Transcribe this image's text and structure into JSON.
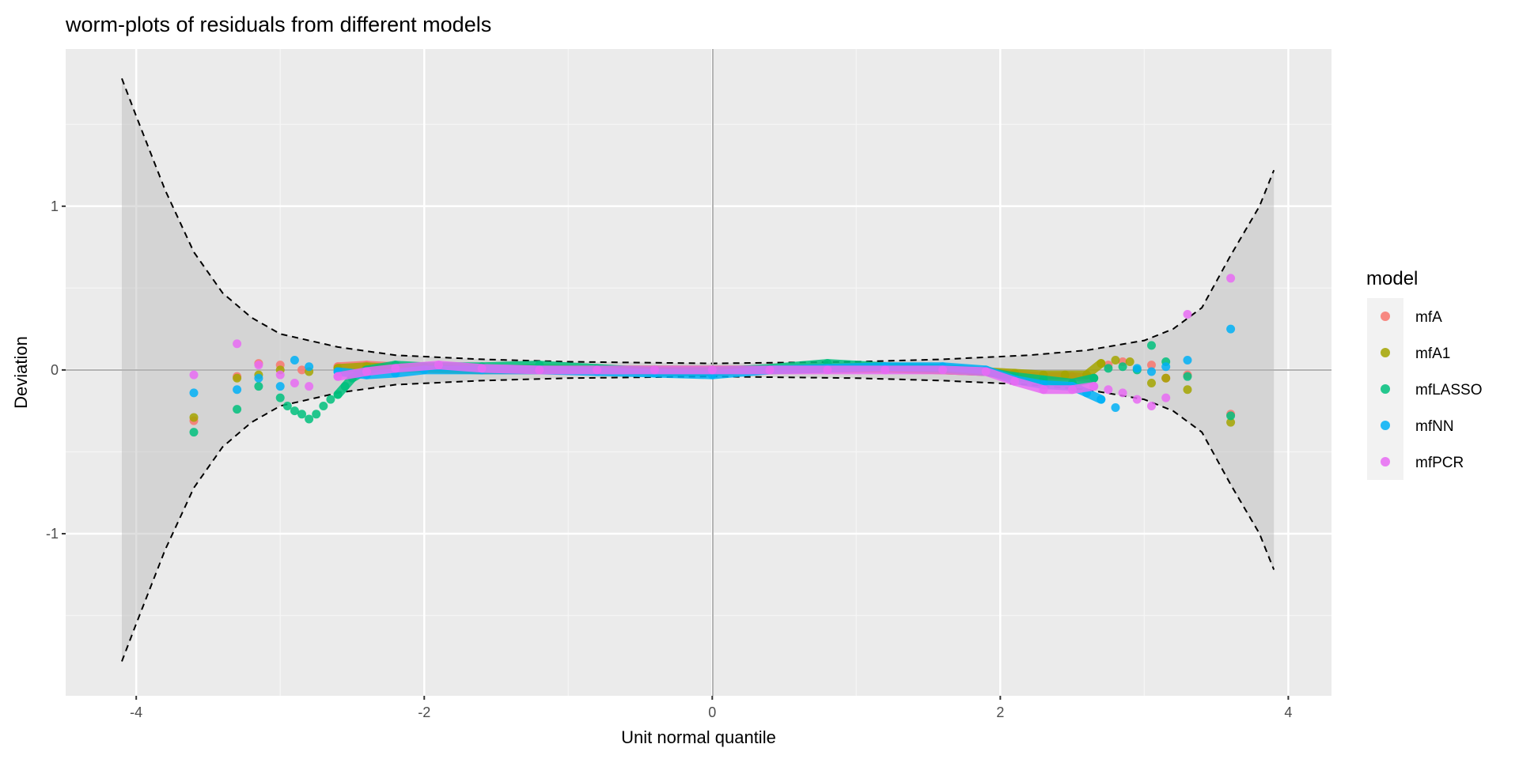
{
  "chart_data": {
    "type": "scatter",
    "title": "worm-plots of residuals from different models",
    "xlabel": "Unit normal quantile",
    "ylabel": "Deviation",
    "xlim": [
      -4.49,
      4.3
    ],
    "ylim": [
      -1.99,
      1.96
    ],
    "x_ticks": [
      -4,
      -2,
      0,
      2,
      4
    ],
    "x_tick_labels": [
      "-4",
      "-2",
      "0",
      "2",
      "4"
    ],
    "y_ticks": [
      -1,
      0,
      1
    ],
    "y_tick_labels": [
      "-1",
      "0",
      "1"
    ],
    "grid": true,
    "legend": {
      "title": "model",
      "placement": "right"
    },
    "confidence_band": {
      "x": [
        -4.1,
        -4.0,
        -3.8,
        -3.6,
        -3.4,
        -3.2,
        -3.0,
        -2.6,
        -2.2,
        -1.6,
        -1.0,
        0.0,
        1.0,
        1.6,
        2.2,
        2.6,
        3.0,
        3.2,
        3.4,
        3.6,
        3.8,
        3.9
      ],
      "upper": [
        1.78,
        1.55,
        1.1,
        0.72,
        0.47,
        0.32,
        0.22,
        0.14,
        0.09,
        0.065,
        0.05,
        0.04,
        0.05,
        0.065,
        0.09,
        0.12,
        0.18,
        0.25,
        0.38,
        0.7,
        1.0,
        1.22
      ],
      "lower": [
        -1.78,
        -1.55,
        -1.1,
        -0.72,
        -0.47,
        -0.32,
        -0.22,
        -0.14,
        -0.09,
        -0.065,
        -0.05,
        -0.04,
        -0.05,
        -0.065,
        -0.09,
        -0.12,
        -0.18,
        -0.25,
        -0.38,
        -0.7,
        -1.0,
        -1.22
      ]
    },
    "series": [
      {
        "name": "mfA",
        "color": "#F8766D",
        "points": [
          [
            -3.6,
            -0.31
          ],
          [
            -3.3,
            -0.04
          ],
          [
            -3.15,
            0.04
          ],
          [
            -3.0,
            0.03
          ],
          [
            -2.85,
            0.0
          ],
          [
            -2.6,
            0.02
          ],
          [
            -2.4,
            0.03
          ],
          [
            -2.2,
            0.02
          ],
          [
            -2.0,
            0.01
          ],
          [
            -1.6,
            0.0
          ],
          [
            -1.2,
            0.0
          ],
          [
            -0.8,
            0.0
          ],
          [
            -0.4,
            0.0
          ],
          [
            0.0,
            0.0
          ],
          [
            0.4,
            0.0
          ],
          [
            0.8,
            0.01
          ],
          [
            1.2,
            0.01
          ],
          [
            1.6,
            0.0
          ],
          [
            1.9,
            -0.01
          ],
          [
            2.1,
            -0.03
          ],
          [
            2.3,
            -0.04
          ],
          [
            2.5,
            -0.04
          ],
          [
            2.65,
            -0.05
          ],
          [
            2.75,
            0.03
          ],
          [
            2.85,
            0.05
          ],
          [
            3.05,
            0.03
          ],
          [
            3.15,
            -0.05
          ],
          [
            3.3,
            -0.03
          ],
          [
            3.6,
            -0.27
          ]
        ]
      },
      {
        "name": "mfA1",
        "color": "#A3A500",
        "points": [
          [
            -3.6,
            -0.29
          ],
          [
            -3.3,
            -0.05
          ],
          [
            -3.15,
            -0.03
          ],
          [
            -3.0,
            0.0
          ],
          [
            -2.8,
            -0.01
          ],
          [
            -2.6,
            0.01
          ],
          [
            -2.4,
            0.02
          ],
          [
            -2.2,
            0.01
          ],
          [
            -2.0,
            0.01
          ],
          [
            -1.6,
            0.0
          ],
          [
            -1.2,
            0.01
          ],
          [
            -0.8,
            0.0
          ],
          [
            -0.4,
            0.0
          ],
          [
            0.0,
            0.0
          ],
          [
            0.4,
            0.0
          ],
          [
            0.8,
            0.01
          ],
          [
            1.2,
            0.01
          ],
          [
            1.6,
            0.0
          ],
          [
            1.9,
            -0.01
          ],
          [
            2.1,
            -0.02
          ],
          [
            2.3,
            -0.03
          ],
          [
            2.45,
            -0.03
          ],
          [
            2.6,
            -0.03
          ],
          [
            2.7,
            0.04
          ],
          [
            2.8,
            0.06
          ],
          [
            2.9,
            0.05
          ],
          [
            3.05,
            -0.08
          ],
          [
            3.15,
            -0.05
          ],
          [
            3.3,
            -0.12
          ],
          [
            3.6,
            -0.32
          ]
        ]
      },
      {
        "name": "mfLASSO",
        "color": "#00BF7D",
        "points": [
          [
            -3.6,
            -0.38
          ],
          [
            -3.3,
            -0.24
          ],
          [
            -3.15,
            -0.1
          ],
          [
            -3.0,
            -0.17
          ],
          [
            -2.95,
            -0.22
          ],
          [
            -2.9,
            -0.25
          ],
          [
            -2.85,
            -0.27
          ],
          [
            -2.8,
            -0.3
          ],
          [
            -2.75,
            -0.27
          ],
          [
            -2.7,
            -0.22
          ],
          [
            -2.65,
            -0.18
          ],
          [
            -2.6,
            -0.15
          ],
          [
            -2.55,
            -0.1
          ],
          [
            -2.5,
            -0.05
          ],
          [
            -2.4,
            0.0
          ],
          [
            -2.2,
            0.03
          ],
          [
            -2.0,
            0.02
          ],
          [
            -1.6,
            0.02
          ],
          [
            -1.2,
            0.03
          ],
          [
            -0.8,
            0.01
          ],
          [
            -0.4,
            -0.01
          ],
          [
            0.0,
            -0.01
          ],
          [
            0.4,
            0.01
          ],
          [
            0.8,
            0.04
          ],
          [
            1.2,
            0.02
          ],
          [
            1.6,
            0.01
          ],
          [
            1.9,
            -0.01
          ],
          [
            2.1,
            -0.04
          ],
          [
            2.3,
            -0.06
          ],
          [
            2.5,
            -0.08
          ],
          [
            2.65,
            -0.05
          ],
          [
            2.75,
            0.01
          ],
          [
            2.85,
            0.02
          ],
          [
            2.95,
            0.0
          ],
          [
            3.05,
            0.15
          ],
          [
            3.15,
            0.05
          ],
          [
            3.3,
            -0.04
          ],
          [
            3.6,
            -0.28
          ]
        ]
      },
      {
        "name": "mfNN",
        "color": "#00B0F6",
        "points": [
          [
            -3.6,
            -0.14
          ],
          [
            -3.3,
            -0.12
          ],
          [
            -3.15,
            -0.05
          ],
          [
            -3.0,
            -0.1
          ],
          [
            -2.9,
            0.06
          ],
          [
            -2.8,
            0.02
          ],
          [
            -2.6,
            -0.01
          ],
          [
            -2.4,
            -0.03
          ],
          [
            -2.2,
            -0.02
          ],
          [
            -2.0,
            0.0
          ],
          [
            -1.6,
            0.0
          ],
          [
            -1.2,
            0.0
          ],
          [
            -0.8,
            -0.01
          ],
          [
            -0.4,
            -0.02
          ],
          [
            0.0,
            -0.03
          ],
          [
            0.4,
            0.0
          ],
          [
            0.8,
            0.01
          ],
          [
            1.2,
            0.02
          ],
          [
            1.6,
            0.02
          ],
          [
            1.9,
            0.0
          ],
          [
            2.1,
            -0.06
          ],
          [
            2.3,
            -0.09
          ],
          [
            2.5,
            -0.1
          ],
          [
            2.6,
            -0.14
          ],
          [
            2.7,
            -0.18
          ],
          [
            2.8,
            -0.23
          ],
          [
            2.95,
            0.01
          ],
          [
            3.05,
            -0.01
          ],
          [
            3.15,
            0.02
          ],
          [
            3.3,
            0.06
          ],
          [
            3.6,
            0.25
          ]
        ]
      },
      {
        "name": "mfPCR",
        "color": "#E76BF3",
        "points": [
          [
            -3.6,
            -0.03
          ],
          [
            -3.3,
            0.16
          ],
          [
            -3.15,
            0.03
          ],
          [
            -3.0,
            -0.03
          ],
          [
            -2.9,
            -0.08
          ],
          [
            -2.8,
            -0.1
          ],
          [
            -2.6,
            -0.04
          ],
          [
            -2.4,
            -0.01
          ],
          [
            -2.2,
            0.01
          ],
          [
            -1.9,
            0.03
          ],
          [
            -1.6,
            0.01
          ],
          [
            -1.2,
            0.0
          ],
          [
            -0.8,
            0.0
          ],
          [
            -0.4,
            0.0
          ],
          [
            0.0,
            0.0
          ],
          [
            0.4,
            0.0
          ],
          [
            0.8,
            0.0
          ],
          [
            1.2,
            0.0
          ],
          [
            1.6,
            0.0
          ],
          [
            1.9,
            -0.01
          ],
          [
            2.1,
            -0.07
          ],
          [
            2.3,
            -0.12
          ],
          [
            2.5,
            -0.12
          ],
          [
            2.65,
            -0.1
          ],
          [
            2.75,
            -0.12
          ],
          [
            2.85,
            -0.14
          ],
          [
            2.95,
            -0.18
          ],
          [
            3.05,
            -0.22
          ],
          [
            3.15,
            -0.17
          ],
          [
            3.3,
            0.34
          ],
          [
            3.6,
            0.56
          ]
        ]
      }
    ]
  }
}
